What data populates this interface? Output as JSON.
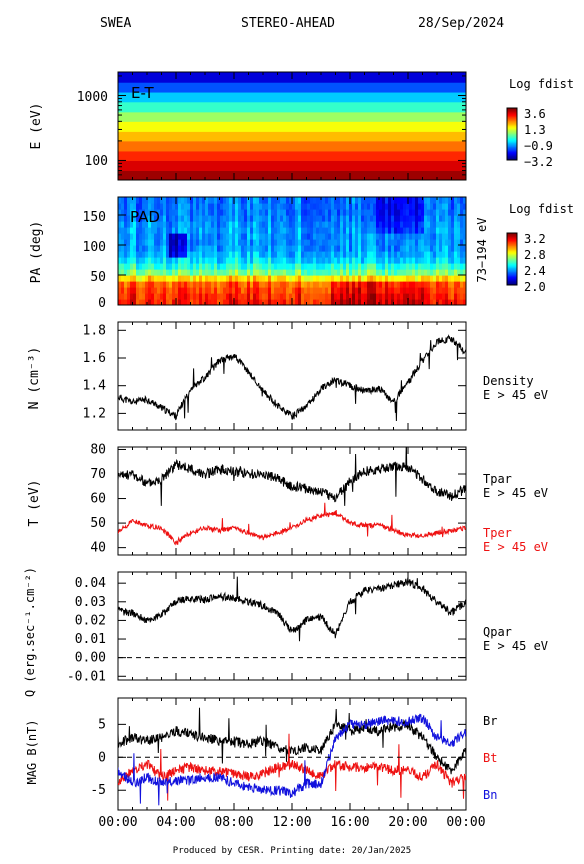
{
  "header": {
    "instrument": "SWEA",
    "spacecraft": "STEREO-AHEAD",
    "date": "28/Sep/2024"
  },
  "footer": "Produced by CESR.   Printing date: 20/Jan/2025",
  "colors": {
    "black": "#000000",
    "red": "#ee1111",
    "blue": "#1111dd"
  },
  "chart_data": [
    {
      "id": "et",
      "type": "heatmap",
      "title": "E-T",
      "ylabel": "E (eV)",
      "yscale": "log",
      "yticks": [
        "1000",
        "100"
      ],
      "colorbar": {
        "title": "Log fdist",
        "ticks": [
          "3.6",
          "1.3",
          "−0.9",
          "−3.2"
        ],
        "range": [
          -3.2,
          3.6
        ]
      },
      "bands": [
        {
          "e_low": 50,
          "value": 3.4
        },
        {
          "e_low": 70,
          "value": 3.0
        },
        {
          "e_low": 100,
          "value": 2.5
        },
        {
          "e_low": 140,
          "value": 2.0
        },
        {
          "e_low": 200,
          "value": 1.5
        },
        {
          "e_low": 280,
          "value": 1.0
        },
        {
          "e_low": 400,
          "value": 0.4
        },
        {
          "e_low": 560,
          "value": -0.3
        },
        {
          "e_low": 800,
          "value": -1.0
        },
        {
          "e_low": 1130,
          "value": -1.8
        },
        {
          "e_low": 1600,
          "value": -2.6
        }
      ],
      "ylim": [
        50,
        2300
      ]
    },
    {
      "id": "pad",
      "type": "heatmap",
      "title": "PAD",
      "ylabel": "PA (deg)",
      "yticks": [
        "150",
        "100",
        "50",
        "0"
      ],
      "ylim": [
        0,
        180
      ],
      "right_label": "73−194 eV",
      "colorbar": {
        "title": "Log fdist",
        "ticks": [
          "3.2",
          "2.8",
          "2.4",
          "2.0"
        ],
        "range": [
          2.0,
          3.2
        ]
      },
      "pa_profile": [
        {
          "pa": 0,
          "value": 3.05
        },
        {
          "pa": 20,
          "value": 3.0
        },
        {
          "pa": 35,
          "value": 2.95
        },
        {
          "pa": 45,
          "value": 2.8
        },
        {
          "pa": 55,
          "value": 2.6
        },
        {
          "pa": 70,
          "value": 2.45
        },
        {
          "pa": 90,
          "value": 2.35
        },
        {
          "pa": 110,
          "value": 2.33
        },
        {
          "pa": 130,
          "value": 2.35
        },
        {
          "pa": 150,
          "value": 2.3
        },
        {
          "pa": 170,
          "value": 2.3
        }
      ]
    },
    {
      "id": "density",
      "type": "line",
      "ylabel": "N (cm⁻³)",
      "ylim": [
        1.08,
        1.86
      ],
      "yticks": [
        1.2,
        1.4,
        1.6,
        1.8
      ],
      "series": [
        {
          "name": "Density",
          "sub": "E > 45 eV",
          "color": "black",
          "x": [
            0,
            1,
            2,
            3,
            4,
            5,
            6,
            7,
            8,
            9,
            10,
            11,
            12,
            13,
            14,
            15,
            16,
            17,
            18,
            19,
            20,
            21,
            22,
            23,
            24
          ],
          "values": [
            1.32,
            1.28,
            1.3,
            1.24,
            1.18,
            1.38,
            1.46,
            1.58,
            1.62,
            1.5,
            1.36,
            1.26,
            1.18,
            1.25,
            1.38,
            1.44,
            1.4,
            1.36,
            1.38,
            1.28,
            1.42,
            1.58,
            1.72,
            1.74,
            1.64
          ]
        }
      ]
    },
    {
      "id": "temperature",
      "type": "line",
      "ylabel": "T (eV)",
      "ylim": [
        37,
        81
      ],
      "yticks": [
        40,
        50,
        60,
        70,
        80
      ],
      "series": [
        {
          "name": "Tpar",
          "sub": "E > 45 eV",
          "color": "black",
          "x": [
            0,
            1,
            2,
            3,
            4,
            5,
            6,
            7,
            8,
            9,
            10,
            11,
            12,
            13,
            14,
            15,
            16,
            17,
            18,
            19,
            20,
            21,
            22,
            23,
            24
          ],
          "values": [
            69,
            70,
            66,
            68,
            74,
            72,
            70,
            72,
            71,
            70,
            70,
            68,
            65,
            64,
            63,
            60,
            67,
            71,
            72,
            73,
            73,
            68,
            63,
            61,
            64
          ]
        },
        {
          "name": "Tper",
          "sub": "E > 45 eV",
          "color": "red",
          "x": [
            0,
            1,
            2,
            3,
            4,
            5,
            6,
            7,
            8,
            9,
            10,
            11,
            12,
            13,
            14,
            15,
            16,
            17,
            18,
            19,
            20,
            21,
            22,
            23,
            24
          ],
          "values": [
            46,
            51,
            49,
            48,
            42,
            46,
            48,
            47,
            48,
            46,
            44,
            46,
            48,
            51,
            53,
            54,
            50,
            49,
            49,
            47,
            45,
            45,
            46,
            47,
            48
          ]
        }
      ]
    },
    {
      "id": "heatflux",
      "type": "line",
      "ylabel": "Q (erg.sec⁻¹.cm⁻²)",
      "ylim": [
        -0.012,
        0.046
      ],
      "yticks": [
        -0.01,
        0.0,
        0.01,
        0.02,
        0.03,
        0.04
      ],
      "series": [
        {
          "name": "Qpar",
          "sub": "E > 45 eV",
          "color": "black",
          "x": [
            0,
            1,
            2,
            3,
            4,
            5,
            6,
            7,
            8,
            9,
            10,
            11,
            12,
            13,
            14,
            15,
            16,
            17,
            18,
            19,
            20,
            21,
            22,
            23,
            24
          ],
          "values": [
            0.025,
            0.024,
            0.02,
            0.023,
            0.03,
            0.032,
            0.031,
            0.033,
            0.032,
            0.03,
            0.028,
            0.024,
            0.014,
            0.02,
            0.022,
            0.012,
            0.03,
            0.036,
            0.037,
            0.039,
            0.041,
            0.036,
            0.03,
            0.024,
            0.03
          ]
        }
      ]
    },
    {
      "id": "mag",
      "type": "line",
      "ylabel": "MAG B(nT)",
      "ylim": [
        -8,
        9
      ],
      "yticks": [
        -5,
        0,
        5
      ],
      "series": [
        {
          "name": "Br",
          "color": "black",
          "x": [
            0,
            1,
            2,
            3,
            4,
            5,
            6,
            7,
            8,
            9,
            10,
            11,
            12,
            13,
            14,
            15,
            16,
            17,
            18,
            19,
            20,
            21,
            22,
            23,
            24
          ],
          "values": [
            2.0,
            3.0,
            2.5,
            3.0,
            4.0,
            3.5,
            3.0,
            2.5,
            2.5,
            2.0,
            2.5,
            1.5,
            1.0,
            1.5,
            1.0,
            5.0,
            4.0,
            4.5,
            4.0,
            4.5,
            5.0,
            3.0,
            0.0,
            -2.0,
            1.0
          ]
        },
        {
          "name": "Bt",
          "color": "red",
          "x": [
            0,
            1,
            2,
            3,
            4,
            5,
            6,
            7,
            8,
            9,
            10,
            11,
            12,
            13,
            14,
            15,
            16,
            17,
            18,
            19,
            20,
            21,
            22,
            23,
            24
          ],
          "values": [
            -4.0,
            -2.0,
            -1.0,
            -3.0,
            -2.0,
            -1.5,
            -2.0,
            -2.0,
            -2.5,
            -3.0,
            -2.5,
            -1.5,
            -1.0,
            -2.0,
            -3.0,
            -1.0,
            -1.5,
            -1.5,
            -1.5,
            -2.0,
            -2.0,
            -3.0,
            -1.0,
            -4.0,
            -3.0
          ]
        },
        {
          "name": "Bn",
          "color": "blue",
          "x": [
            0,
            1,
            2,
            3,
            4,
            5,
            6,
            7,
            8,
            9,
            10,
            11,
            12,
            13,
            14,
            15,
            16,
            17,
            18,
            19,
            20,
            21,
            22,
            23,
            24
          ],
          "values": [
            -2.0,
            -4.0,
            -3.0,
            -4.0,
            -3.5,
            -3.5,
            -3.0,
            -3.0,
            -4.0,
            -4.5,
            -5.0,
            -5.0,
            -5.5,
            -4.0,
            -4.0,
            3.0,
            5.0,
            5.0,
            5.5,
            5.5,
            5.5,
            6.0,
            3.0,
            2.0,
            4.0
          ]
        }
      ]
    }
  ],
  "xaxis": {
    "ticks": [
      "00:00",
      "04:00",
      "08:00",
      "12:00",
      "16:00",
      "20:00",
      "00:00"
    ],
    "range_hours": [
      0,
      24
    ]
  }
}
